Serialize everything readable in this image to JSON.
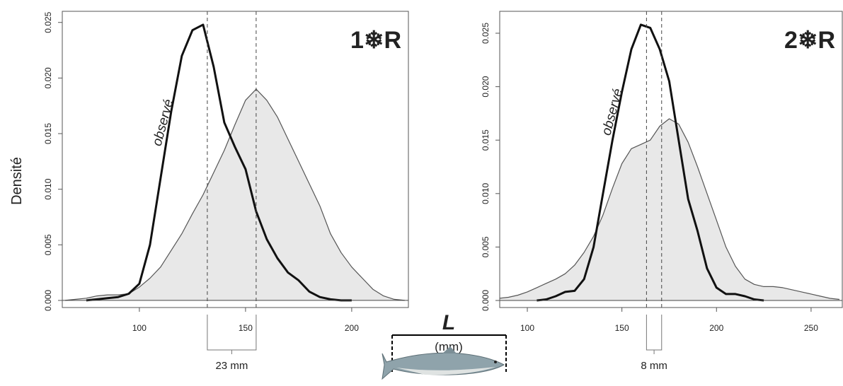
{
  "shared_axis": {
    "x_label": "L",
    "x_unit": "(mm)",
    "y_label": "Densité"
  },
  "chart_data": [
    {
      "type": "line",
      "panel_label": "1❄R",
      "x": [
        65,
        70,
        75,
        80,
        85,
        90,
        95,
        100,
        105,
        110,
        115,
        120,
        125,
        130,
        135,
        140,
        145,
        150,
        155,
        160,
        165,
        170,
        175,
        180,
        185,
        190,
        195,
        200,
        205,
        210,
        215,
        220,
        225
      ],
      "series": [
        {
          "color": "#555555",
          "fill": "#e8e8e8",
          "values": [
            0,
            0.0001,
            0.0002,
            0.0004,
            0.0005,
            0.0005,
            0.0006,
            0.0012,
            0.002,
            0.003,
            0.0045,
            0.006,
            0.0078,
            0.0095,
            0.0115,
            0.0135,
            0.0158,
            0.018,
            0.019,
            0.018,
            0.0165,
            0.0145,
            0.0125,
            0.0105,
            0.0085,
            0.006,
            0.0043,
            0.003,
            0.002,
            0.001,
            0.0004,
            0.0001,
            0
          ]
        },
        {
          "name": "observé",
          "color": "#111111",
          "values": [
            null,
            null,
            0,
            0.0001,
            0.0002,
            0.0003,
            0.0006,
            0.0015,
            0.005,
            0.011,
            0.017,
            0.022,
            0.0243,
            0.0248,
            0.021,
            0.016,
            0.0138,
            0.0118,
            0.008,
            0.0055,
            0.0038,
            0.0025,
            0.0018,
            0.0008,
            0.0003,
            0.0001,
            0,
            0,
            null,
            null,
            null,
            null,
            null
          ]
        }
      ],
      "vlines": [
        132,
        155
      ],
      "difference_label": "23 mm",
      "xlim": [
        63.7,
        226.7
      ],
      "xticks": [
        100,
        150,
        200
      ],
      "ylim": [
        -0.00064,
        0.026
      ],
      "yticks": [
        {
          "value": 0,
          "label": "0.000"
        },
        0.005,
        {
          "value": 0.01,
          "label": "0.010"
        },
        0.015,
        {
          "value": 0.02,
          "label": "0.020"
        },
        0.025
      ]
    },
    {
      "type": "line",
      "panel_label": "2❄R",
      "x": [
        85,
        90,
        95,
        100,
        105,
        110,
        115,
        120,
        125,
        130,
        135,
        140,
        145,
        150,
        155,
        160,
        165,
        170,
        175,
        180,
        185,
        190,
        195,
        200,
        205,
        210,
        215,
        220,
        225,
        230,
        235,
        240,
        245,
        250,
        255,
        260,
        265
      ],
      "series": [
        {
          "color": "#555555",
          "fill": "#e8e8e8",
          "values": [
            0.0002,
            0.0003,
            0.0005,
            0.0008,
            0.0012,
            0.0016,
            0.002,
            0.0025,
            0.0033,
            0.0045,
            0.006,
            0.008,
            0.0105,
            0.0128,
            0.0142,
            0.0146,
            0.015,
            0.0163,
            0.017,
            0.0165,
            0.0148,
            0.0125,
            0.01,
            0.0075,
            0.005,
            0.0032,
            0.002,
            0.0015,
            0.0013,
            0.0013,
            0.0012,
            0.001,
            0.0008,
            0.0006,
            0.0004,
            0.0002,
            0.0001
          ]
        },
        {
          "name": "observé",
          "color": "#111111",
          "values": [
            null,
            null,
            null,
            null,
            0,
            0.0001,
            0.0004,
            0.0008,
            0.0009,
            0.002,
            0.005,
            0.01,
            0.015,
            0.0195,
            0.0235,
            0.0258,
            0.0255,
            0.0235,
            0.0205,
            0.015,
            0.0095,
            0.0065,
            0.003,
            0.0012,
            0.0006,
            0.0006,
            0.0004,
            0.0001,
            0,
            null,
            null,
            null,
            null,
            null,
            null,
            null,
            null
          ]
        }
      ],
      "vlines": [
        163,
        171
      ],
      "difference_label": "8 mm",
      "xlim": [
        85.4,
        266.5
      ],
      "xticks": [
        100,
        150,
        200,
        250
      ],
      "ylim": [
        -0.00066,
        0.02705
      ],
      "yticks": [
        {
          "value": 0,
          "label": "0.000"
        },
        0.005,
        {
          "value": 0.01,
          "label": "0.010"
        },
        0.015,
        {
          "value": 0.02,
          "label": "0.020"
        },
        0.025
      ]
    }
  ]
}
